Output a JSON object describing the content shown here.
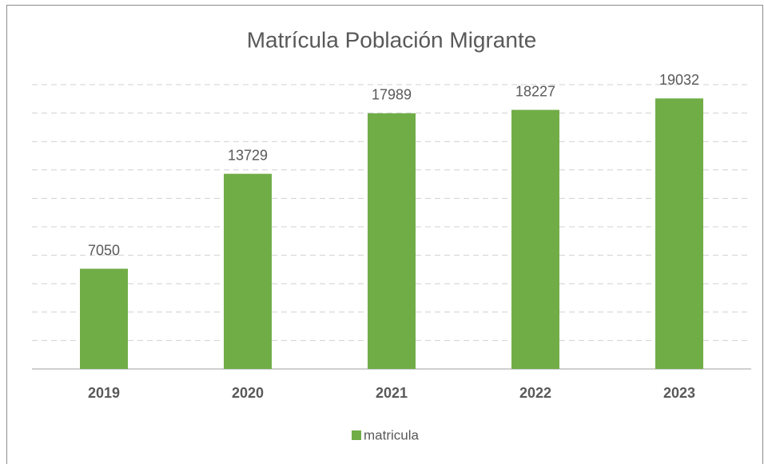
{
  "chart_data": {
    "type": "bar",
    "title": "Matrícula Población Migrante",
    "categories": [
      "2019",
      "2020",
      "2021",
      "2022",
      "2023"
    ],
    "series": [
      {
        "name": "matricula",
        "color": "#70ad47",
        "values": [
          7050,
          13729,
          17989,
          18227,
          19032
        ]
      }
    ],
    "ylim": [
      0,
      20000
    ],
    "yticks": [
      0,
      2000,
      4000,
      6000,
      8000,
      10000,
      12000,
      14000,
      16000,
      18000,
      20000
    ],
    "grid": true,
    "legend": "bottom"
  }
}
